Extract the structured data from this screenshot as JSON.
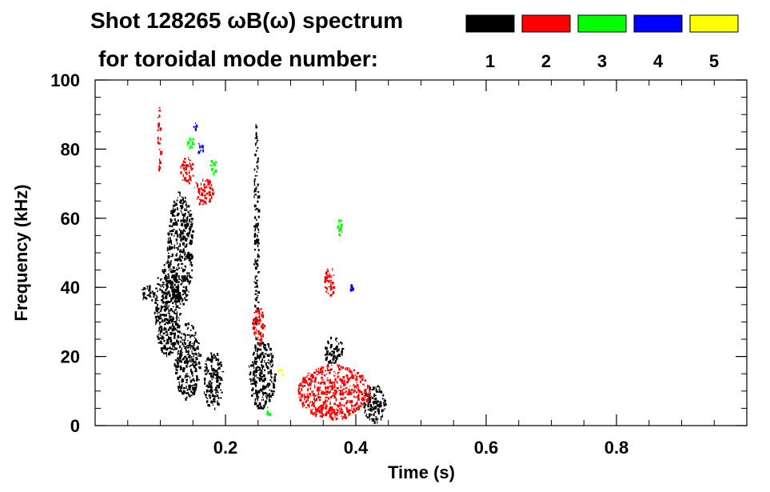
{
  "chart_data": {
    "type": "heatmap",
    "title_line1": "Shot 128265 ωB(ω) spectrum",
    "title_line2": "for toroidal mode number:",
    "xlabel": "Time (s)",
    "ylabel": "Frequency (kHz)",
    "xlim": [
      0.0,
      1.0
    ],
    "ylim": [
      0,
      100
    ],
    "x_ticks": [
      {
        "value": 0.2,
        "label": "0.2"
      },
      {
        "value": 0.4,
        "label": "0.4"
      },
      {
        "value": 0.6,
        "label": "0.6"
      },
      {
        "value": 0.8,
        "label": "0.8"
      }
    ],
    "y_ticks": [
      {
        "value": 0,
        "label": "0"
      },
      {
        "value": 20,
        "label": "20"
      },
      {
        "value": 40,
        "label": "40"
      },
      {
        "value": 60,
        "label": "60"
      },
      {
        "value": 80,
        "label": "80"
      },
      {
        "value": 100,
        "label": "100"
      }
    ],
    "legend": [
      {
        "mode": "1",
        "color": "#000000"
      },
      {
        "mode": "2",
        "color": "#ff0000"
      },
      {
        "mode": "3",
        "color": "#00ff00"
      },
      {
        "mode": "4",
        "color": "#0000ff"
      },
      {
        "mode": "5",
        "color": "#ffff00"
      }
    ],
    "series": [
      {
        "mode": "1",
        "color": "#000000",
        "regions": [
          {
            "t": [
              0.07,
              0.09
            ],
            "f": [
              36,
              41
            ]
          },
          {
            "t": [
              0.09,
              0.13
            ],
            "f": [
              20,
              48
            ]
          },
          {
            "t": [
              0.11,
              0.15
            ],
            "f": [
              35,
              68
            ]
          },
          {
            "t": [
              0.12,
              0.16
            ],
            "f": [
              8,
              30
            ]
          },
          {
            "t": [
              0.165,
              0.195
            ],
            "f": [
              5,
              22
            ]
          },
          {
            "t": [
              0.235,
              0.275
            ],
            "f": [
              5,
              25
            ]
          },
          {
            "t": [
              0.243,
              0.25
            ],
            "f": [
              25,
              88
            ]
          },
          {
            "t": [
              0.35,
              0.38
            ],
            "f": [
              18,
              26
            ]
          },
          {
            "t": [
              0.41,
              0.445
            ],
            "f": [
              1,
              12
            ]
          }
        ]
      },
      {
        "mode": "2",
        "color": "#ff0000",
        "regions": [
          {
            "t": [
              0.13,
              0.15
            ],
            "f": [
              70,
              78
            ]
          },
          {
            "t": [
              0.15,
              0.18
            ],
            "f": [
              64,
              72
            ]
          },
          {
            "t": [
              0.095,
              0.1
            ],
            "f": [
              74,
              93
            ]
          },
          {
            "t": [
              0.24,
              0.26
            ],
            "f": [
              24,
              35
            ]
          },
          {
            "t": [
              0.35,
              0.37
            ],
            "f": [
              38,
              46
            ]
          },
          {
            "t": [
              0.31,
              0.42
            ],
            "f": [
              2,
              18
            ]
          }
        ]
      },
      {
        "mode": "3",
        "color": "#00ff00",
        "regions": [
          {
            "t": [
              0.14,
              0.15
            ],
            "f": [
              80,
              84
            ]
          },
          {
            "t": [
              0.175,
              0.185
            ],
            "f": [
              73,
              78
            ]
          },
          {
            "t": [
              0.37,
              0.38
            ],
            "f": [
              55,
              60
            ]
          },
          {
            "t": [
              0.26,
              0.27
            ],
            "f": [
              3,
              6
            ]
          }
        ]
      },
      {
        "mode": "4",
        "color": "#0000ff",
        "regions": [
          {
            "t": [
              0.155,
              0.165
            ],
            "f": [
              79,
              82
            ]
          },
          {
            "t": [
              0.15,
              0.155
            ],
            "f": [
              86,
              88
            ]
          },
          {
            "t": [
              0.39,
              0.395
            ],
            "f": [
              39,
              41
            ]
          }
        ]
      },
      {
        "mode": "5",
        "color": "#ffff00",
        "regions": [
          {
            "t": [
              0.28,
              0.29
            ],
            "f": [
              15,
              17
            ]
          }
        ]
      }
    ]
  }
}
